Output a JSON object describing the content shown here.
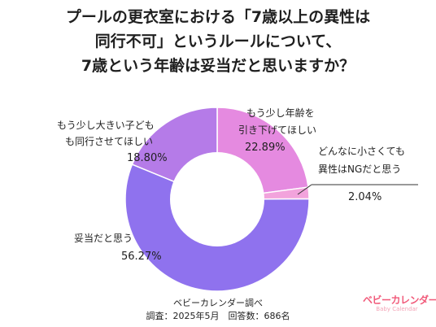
{
  "title_lines": [
    "プールの更衣室における「7歳以上の異性は",
    "同行不可」というルールについて、",
    "7歳という年齢は妥当だと思いますか？"
  ],
  "source": "ベビーカレンダー調べ",
  "survey": "調査：2025年5月　回答数：686名",
  "logo": {
    "main": "ベビーカレンダー",
    "sub": "Baby Calendar"
  },
  "chart_data": {
    "type": "pie",
    "donut": true,
    "start_angle_deg": 0,
    "direction": "clockwise",
    "categories": [
      "もう少し年齢を引き下げてほしい",
      "どんなに小さくても異性はNGだと思う",
      "妥当だと思う",
      "もう少し大きい子どもも同行させてほしい"
    ],
    "values": [
      22.89,
      2.04,
      56.27,
      18.8
    ],
    "colors": [
      "#e58ae0",
      "#f2a3dc",
      "#8f72ee",
      "#b57be8"
    ],
    "labels": [
      {
        "lines": [
          "もう少し年齢を",
          "引き下げてほしい"
        ],
        "value_text": "22.89%"
      },
      {
        "lines": [
          "どんなに小さくても",
          "異性はNGだと思う"
        ],
        "value_text": "2.04%"
      },
      {
        "lines": [
          "妥当だと思う"
        ],
        "value_text": "56.27%"
      },
      {
        "lines": [
          "もう少し大きい子ども",
          "も同行させてほしい"
        ],
        "value_text": "18.80%"
      }
    ]
  }
}
